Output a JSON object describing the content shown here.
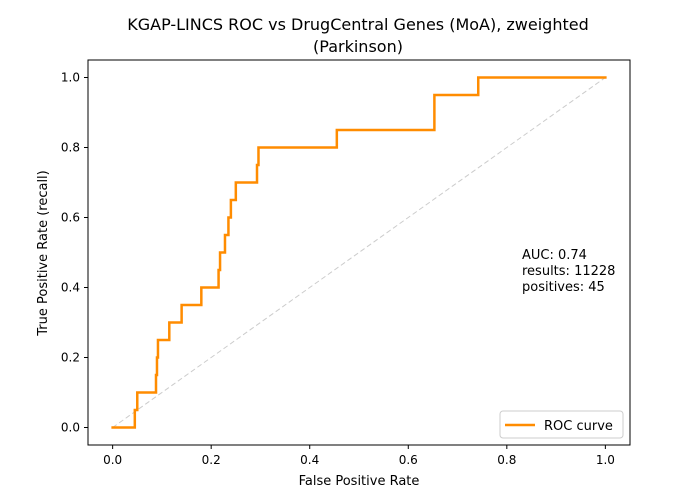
{
  "chart_data": {
    "type": "line",
    "title_line1": "KGAP-LINCS ROC vs DrugCentral Genes (MoA), zweighted",
    "title_line2": "(Parkinson)",
    "xlabel": "False Positive Rate",
    "ylabel": "True Positive Rate (recall)",
    "xlim": [
      -0.05,
      1.05
    ],
    "ylim": [
      -0.05,
      1.05
    ],
    "xticks": [
      0.0,
      0.2,
      0.4,
      0.6,
      0.8,
      1.0
    ],
    "xtick_labels": [
      "0.0",
      "0.2",
      "0.4",
      "0.6",
      "0.8",
      "1.0"
    ],
    "yticks": [
      0.0,
      0.2,
      0.4,
      0.6,
      0.8,
      1.0
    ],
    "ytick_labels": [
      "0.0",
      "0.2",
      "0.4",
      "0.6",
      "0.8",
      "1.0"
    ],
    "grid": false,
    "legend_position": "lower-right",
    "annotations": [
      "AUC: 0.74",
      "results: 11228",
      "positives: 45"
    ],
    "series": [
      {
        "name": "ROC curve",
        "color": "#ff8c00",
        "x": [
          0.0,
          0.045,
          0.045,
          0.05,
          0.05,
          0.088,
          0.088,
          0.09,
          0.09,
          0.092,
          0.092,
          0.115,
          0.115,
          0.14,
          0.14,
          0.18,
          0.18,
          0.215,
          0.215,
          0.218,
          0.218,
          0.228,
          0.228,
          0.235,
          0.235,
          0.24,
          0.24,
          0.25,
          0.25,
          0.293,
          0.293,
          0.296,
          0.296,
          0.455,
          0.455,
          0.653,
          0.653,
          0.742,
          0.742,
          1.0
        ],
        "y": [
          0.0,
          0.0,
          0.05,
          0.05,
          0.1,
          0.1,
          0.15,
          0.15,
          0.2,
          0.2,
          0.25,
          0.25,
          0.3,
          0.3,
          0.35,
          0.35,
          0.4,
          0.4,
          0.45,
          0.45,
          0.5,
          0.5,
          0.55,
          0.55,
          0.6,
          0.6,
          0.65,
          0.65,
          0.7,
          0.7,
          0.75,
          0.75,
          0.8,
          0.8,
          0.85,
          0.85,
          0.95,
          0.95,
          1.0,
          1.0
        ]
      },
      {
        "color": "#cccccc",
        "x": [
          0.0,
          1.0
        ],
        "y": [
          0.0,
          1.0
        ]
      }
    ]
  }
}
